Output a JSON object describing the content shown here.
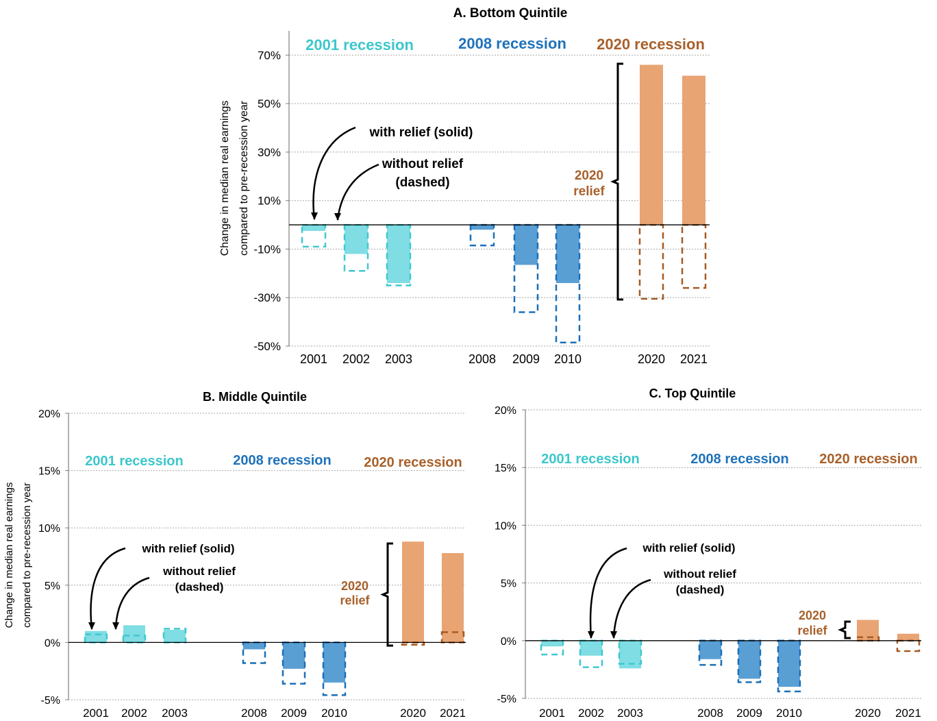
{
  "chart_data": [
    {
      "type": "bar",
      "title": "A. Bottom Quintile",
      "ylabel": "Change in median real earnings compared to pre-recession year",
      "ylim": [
        -50,
        80
      ],
      "yticks": [
        70,
        50,
        30,
        10,
        -10,
        -30,
        -50
      ],
      "ytick_labels": [
        "70%",
        "50%",
        "30%",
        "10%",
        "-10%",
        "-30%",
        "-50%"
      ],
      "grid": true,
      "categories": [
        "2001",
        "2002",
        "2003",
        "2008",
        "2009",
        "2010",
        "2020",
        "2021"
      ],
      "series": [
        {
          "name": "with relief (solid)",
          "values": [
            -2.5,
            -12,
            -24,
            -2,
            -16.5,
            -24,
            66,
            61.5
          ]
        },
        {
          "name": "without relief (dashed)",
          "values": [
            -9,
            -19,
            -25,
            -8.5,
            -36,
            -48.5,
            -30.5,
            -26
          ]
        }
      ],
      "group_labels": [
        "2001 recession",
        "2008 recession",
        "2020 recession"
      ],
      "annotations": {
        "with_relief": "with relief (solid)",
        "without_relief_1": "without relief",
        "without_relief_2": "(dashed)",
        "relief_1": "2020",
        "relief_2": "relief"
      }
    },
    {
      "type": "bar",
      "title": "B. Middle Quintile",
      "ylabel": "Change in median real earnings compared to pre-recession year",
      "ylim": [
        -5,
        20
      ],
      "yticks": [
        20,
        15,
        10,
        5,
        0,
        -5
      ],
      "ytick_labels": [
        "20%",
        "15%",
        "10%",
        "5%",
        "0%",
        "-5%"
      ],
      "grid": true,
      "categories": [
        "2001",
        "2002",
        "2003",
        "2008",
        "2009",
        "2010",
        "2020",
        "2021"
      ],
      "series": [
        {
          "name": "with relief (solid)",
          "values": [
            1.0,
            1.5,
            1.1,
            -0.6,
            -2.3,
            -3.5,
            8.8,
            7.8
          ]
        },
        {
          "name": "without relief (dashed)",
          "values": [
            0.7,
            0.6,
            1.2,
            -1.8,
            -3.6,
            -4.6,
            -0.2,
            0.9
          ]
        }
      ],
      "group_labels": [
        "2001 recession",
        "2008 recession",
        "2020 recession"
      ],
      "annotations": {
        "with_relief": "with relief (solid)",
        "without_relief_1": "without relief",
        "without_relief_2": "(dashed)",
        "relief_1": "2020",
        "relief_2": "relief"
      }
    },
    {
      "type": "bar",
      "title": "C. Top Quintile",
      "ylabel": "",
      "ylim": [
        -5,
        20
      ],
      "yticks": [
        20,
        15,
        10,
        5,
        0,
        -5
      ],
      "ytick_labels": [
        "20%",
        "15%",
        "10%",
        "5%",
        "0%",
        "-5%"
      ],
      "grid": true,
      "categories": [
        "2001",
        "2002",
        "2003",
        "2008",
        "2009",
        "2010",
        "2020",
        "2021"
      ],
      "series": [
        {
          "name": "with relief (solid)",
          "values": [
            -0.5,
            -1.3,
            -2.4,
            -1.6,
            -3.3,
            -4.0,
            1.8,
            0.6
          ]
        },
        {
          "name": "without relief (dashed)",
          "values": [
            -1.2,
            -2.3,
            -2.0,
            -2.1,
            -3.6,
            -4.4,
            0.3,
            -0.9
          ]
        }
      ],
      "group_labels": [
        "2001 recession",
        "2008 recession",
        "2020 recession"
      ],
      "annotations": {
        "with_relief": "with relief (solid)",
        "without_relief_1": "without relief",
        "without_relief_2": "(dashed)",
        "relief_1": "2020",
        "relief_2": "relief"
      }
    }
  ],
  "colors": {
    "rec2001_solid": "#7fdde3",
    "rec2001_dash": "#3fc8cf",
    "rec2008_solid": "#5a9fd4",
    "rec2008_dash": "#1a6fb8",
    "rec2020_solid": "#e8a473",
    "rec2020_dash": "#a65a22",
    "label2001": "#3cc7cc",
    "label2008": "#1f72ba",
    "label2020": "#a8602a"
  }
}
